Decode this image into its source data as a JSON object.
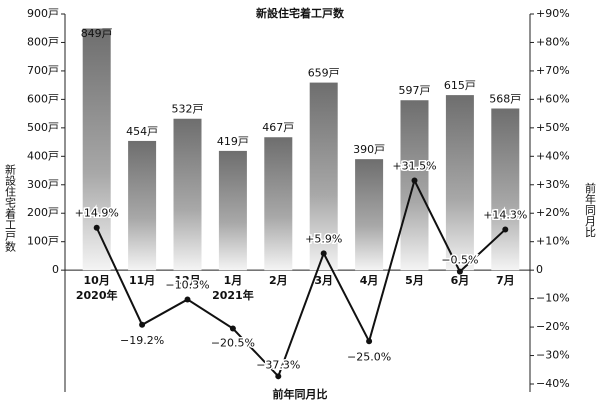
{
  "chart_data": {
    "type": "bar_line",
    "title": "新設住宅着工戸数",
    "ylabel": "新設住宅着工戸数",
    "y2label": "前年同月比",
    "annotation": "前年同月比",
    "categories": [
      "10月",
      "11月",
      "12月",
      "1月",
      "2月",
      "3月",
      "4月",
      "5月",
      "6月",
      "7月"
    ],
    "category_sublabels": [
      "2020年",
      null,
      null,
      "2021年",
      null,
      null,
      null,
      null,
      null,
      null
    ],
    "series": [
      {
        "type": "bar",
        "color": "#7a7a7a",
        "values": [
          849,
          454,
          532,
          419,
          467,
          659,
          390,
          597,
          615,
          568
        ],
        "value_labels": [
          "849戸",
          "454戸",
          "532戸",
          "419戸",
          "467戸",
          "659戸",
          "390戸",
          "597戸",
          "615戸",
          "568戸"
        ]
      },
      {
        "type": "line",
        "axis": "y2",
        "color": "#111111",
        "values": [
          14.9,
          -19.2,
          -10.3,
          -20.5,
          -37.3,
          5.9,
          -25.0,
          31.5,
          -0.5,
          14.3
        ],
        "value_labels": [
          "+14.9%",
          "−19.2%",
          "−10.3%",
          "−20.5%",
          "−37.3%",
          "+5.9%",
          "−25.0%",
          "+31.5%",
          "−0.5%",
          "+14.3%"
        ]
      }
    ],
    "ylim": [
      -400,
      900
    ],
    "yticks": [
      0,
      {
        "value": 100,
        "label": "100戸"
      },
      {
        "value": 200,
        "label": "200戸"
      },
      {
        "value": 300,
        "label": "300戸"
      },
      {
        "value": 400,
        "label": "400戸"
      },
      {
        "value": 500,
        "label": "500戸"
      },
      {
        "value": 600,
        "label": "600戸"
      },
      {
        "value": 700,
        "label": "700戸"
      },
      {
        "value": 800,
        "label": "800戸"
      },
      {
        "value": 900,
        "label": "900戸"
      }
    ],
    "y2lim": [
      -40,
      90
    ],
    "y2ticks": [
      {
        "value": -40,
        "label": "−40%"
      },
      {
        "value": -30,
        "label": "−30%"
      },
      {
        "value": -20,
        "label": "−20%"
      },
      {
        "value": -10,
        "label": "−10%"
      },
      0,
      {
        "value": 10,
        "label": "+10%"
      },
      {
        "value": 20,
        "label": "+20%"
      },
      {
        "value": 30,
        "label": "+30%"
      },
      {
        "value": 40,
        "label": "+40%"
      },
      {
        "value": 50,
        "label": "+50%"
      },
      {
        "value": 60,
        "label": "+60%"
      },
      {
        "value": 70,
        "label": "+70%"
      },
      {
        "value": 80,
        "label": "+80%"
      },
      {
        "value": 90,
        "label": "+90%"
      }
    ]
  }
}
